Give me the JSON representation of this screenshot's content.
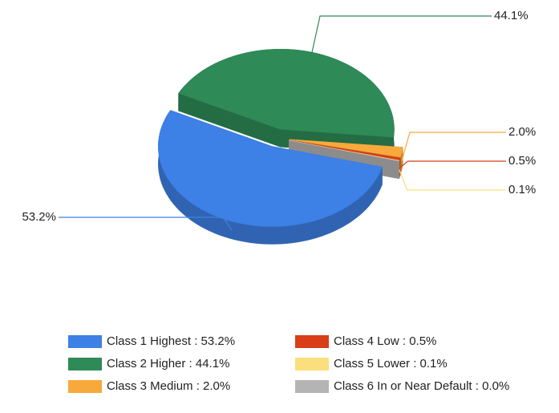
{
  "chart_data": {
    "type": "pie",
    "categories": [
      "Class 1 Highest : 53.2%",
      "Class 2 Higher : 44.1%",
      "Class 3 Medium : 2.0%",
      "Class 4 Low : 0.5%",
      "Class 5 Lower : 0.1%",
      "Class 6 In or Near Default : 0.0%"
    ],
    "values": [
      53.2,
      44.1,
      2.0,
      0.5,
      0.1,
      0.0
    ],
    "value_labels": [
      "53.2%",
      "44.1%",
      "2.0%",
      "0.5%",
      "0.1%",
      null
    ],
    "colors": [
      "#3d80e6",
      "#2e8a57",
      "#f8a93c",
      "#d83e17",
      "#fbdf7c",
      "#b4b4b4"
    ],
    "three_d": true,
    "exploded": true
  }
}
